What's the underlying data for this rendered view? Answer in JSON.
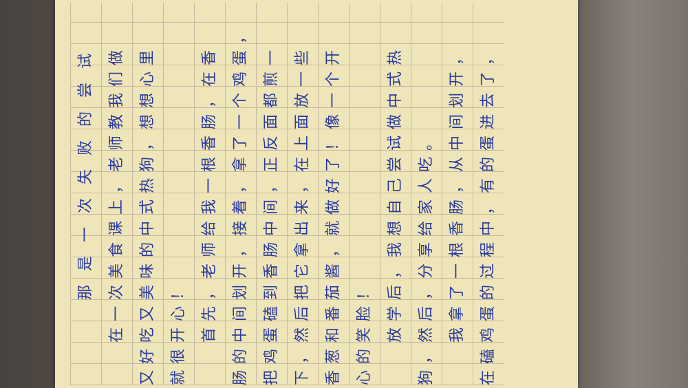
{
  "essay": {
    "title": "那是一次失败的尝试",
    "lines": [
      "在一次美食课上，老师教我们做",
      "又好吃又美味的中式热狗，想想心里",
      "就很开心！",
      "首先，老师给我一根香肠，在香",
      "肠的中间划开，接着，拿了一个鸡蛋，",
      "把鸡蛋磕到香肠中间，正反面都煎一",
      "下，然后把它拿出来，在上面放一些",
      "香葱和番茄酱，就做好了！像一个开",
      "心的笑脸！",
      "放学后，我想自己尝试做中式热",
      "狗，然后，分享给家人吃。",
      "我拿了一根香肠，从中间划开，",
      "在磕鸡蛋的过程中，有的蛋进去了，"
    ]
  },
  "colors": {
    "ink": "#2b3a9e",
    "paper": "#eee5b8",
    "grid": "#c9b9a0"
  }
}
